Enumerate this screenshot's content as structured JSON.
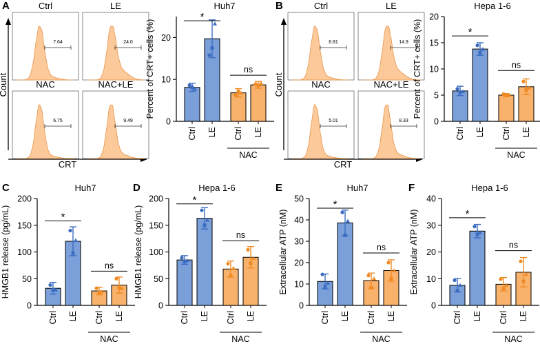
{
  "figure": {
    "panel_letters": [
      "A",
      "B",
      "C",
      "D",
      "E",
      "F"
    ],
    "colors": {
      "ctrl_fill": "#7b9fd9",
      "ctrl_dark": "#3b6cc2",
      "nac_fill": "#f9b26b",
      "nac_dark": "#f08a22",
      "flow_fill": "#fbc99a",
      "flow_line": "#e8944a",
      "axis": "#000000"
    }
  },
  "flow_panels": [
    {
      "panel": "A",
      "y_axis_label": "Count",
      "x_axis_label": "CRT",
      "histograms": [
        {
          "label": "Ctrl",
          "gate_value": "7.64"
        },
        {
          "label": "LE",
          "gate_value": "24.0"
        },
        {
          "label": "NAC",
          "gate_value": "6.75"
        },
        {
          "label": "NAC+LE",
          "gate_value": "9.49"
        }
      ]
    },
    {
      "panel": "B",
      "y_axis_label": "Count",
      "x_axis_label": "CRT",
      "histograms": [
        {
          "label": "Ctrl",
          "gate_value": "6.81"
        },
        {
          "label": "LE",
          "gate_value": "14.9"
        },
        {
          "label": "NAC",
          "gate_value": "5.01"
        },
        {
          "label": "NAC+LE",
          "gate_value": "8.33"
        }
      ]
    }
  ],
  "chart_data": [
    {
      "panel": "A",
      "type": "bar",
      "title": "Huh7",
      "xlabel": "",
      "ylabel": "Percent of CRT+ cells (%)",
      "categories": [
        "Ctrl",
        "LE",
        "Ctrl",
        "LE"
      ],
      "values": [
        8.1,
        19.7,
        6.8,
        8.7
      ],
      "errors": [
        1.0,
        4.5,
        1.0,
        0.8
      ],
      "points": [
        [
          8.6,
          8.1,
          7.7
        ],
        [
          15.8,
          17.5,
          23.3
        ],
        [
          6.3,
          7.1,
          6.8
        ],
        [
          8.9,
          8.6,
          9.1
        ]
      ],
      "ylim": [
        0,
        25
      ],
      "yticks": [
        0,
        10,
        20
      ],
      "group_label": "NAC",
      "comparisons": [
        {
          "text": "*",
          "bars": [
            0,
            1
          ],
          "value": 24.0
        },
        {
          "text": "ns",
          "bars": [
            2,
            3
          ],
          "value": 11.0
        }
      ]
    },
    {
      "panel": "B",
      "type": "bar",
      "title": "Hepa 1-6",
      "xlabel": "",
      "ylabel": "Percent of CRT+ cells (%)",
      "categories": [
        "Ctrl",
        "LE",
        "Ctrl",
        "LE"
      ],
      "values": [
        5.8,
        13.8,
        5.0,
        6.6
      ],
      "errors": [
        0.9,
        1.2,
        0.3,
        1.5
      ],
      "points": [
        [
          6.2,
          5.5,
          5.7
        ],
        [
          14.5,
          13.1,
          13.8
        ],
        [
          5.2,
          4.9,
          5.0
        ],
        [
          7.6,
          6.0,
          6.4
        ]
      ],
      "ylim": [
        0,
        20
      ],
      "yticks": [
        0,
        5,
        10,
        15,
        20
      ],
      "group_label": "NAC",
      "comparisons": [
        {
          "text": "*",
          "bars": [
            0,
            1
          ],
          "value": 16.3
        },
        {
          "text": "ns",
          "bars": [
            2,
            3
          ],
          "value": 9.7
        }
      ]
    },
    {
      "panel": "C",
      "type": "bar",
      "title": "Huh7",
      "xlabel": "",
      "ylabel": "HMGB1 release (pg/mL)",
      "categories": [
        "Ctrl",
        "LE",
        "Ctrl",
        "LE"
      ],
      "values": [
        32,
        120,
        27,
        38
      ],
      "errors": [
        11,
        27,
        7,
        15
      ],
      "points": [
        [
          38,
          29,
          29
        ],
        [
          140,
          98,
          122
        ],
        [
          32,
          24,
          26
        ],
        [
          50,
          33,
          32
        ]
      ],
      "ylim": [
        0,
        200
      ],
      "yticks": [
        0,
        50,
        100,
        150,
        200
      ],
      "group_label": "NAC",
      "comparisons": [
        {
          "text": "*",
          "bars": [
            0,
            1
          ],
          "value": 158
        },
        {
          "text": "ns",
          "bars": [
            2,
            3
          ],
          "value": 64
        }
      ]
    },
    {
      "panel": "D",
      "type": "bar",
      "title": "Hepa 1-6",
      "xlabel": "",
      "ylabel": "HMGB1 release (pg/mL)",
      "categories": [
        "Ctrl",
        "LE",
        "Ctrl",
        "LE"
      ],
      "values": [
        85,
        163,
        68,
        90
      ],
      "errors": [
        8,
        20,
        15,
        20
      ],
      "points": [
        [
          89,
          82,
          84
        ],
        [
          178,
          150,
          160
        ],
        [
          78,
          55,
          70
        ],
        [
          104,
          79,
          88
        ]
      ],
      "ylim": [
        0,
        200
      ],
      "yticks": [
        0,
        50,
        100,
        150,
        200
      ],
      "group_label": "NAC",
      "comparisons": [
        {
          "text": "*",
          "bars": [
            0,
            1
          ],
          "value": 190
        },
        {
          "text": "ns",
          "bars": [
            2,
            3
          ],
          "value": 121
        }
      ]
    },
    {
      "panel": "E",
      "type": "bar",
      "title": "Huh7",
      "xlabel": "",
      "ylabel": "Extracellular ATP (nM)",
      "categories": [
        "Ctrl",
        "LE",
        "Ctrl",
        "LE"
      ],
      "values": [
        11.2,
        38.6,
        11.6,
        16.3
      ],
      "errors": [
        3.5,
        6.0,
        3.5,
        5.0
      ],
      "points": [
        [
          14.5,
          8.6,
          10.5
        ],
        [
          43.5,
          32.8,
          39.5
        ],
        [
          14.0,
          8.2,
          12.6
        ],
        [
          20.0,
          12.5,
          16.4
        ]
      ],
      "ylim": [
        0,
        50
      ],
      "yticks": [
        0,
        10,
        20,
        30,
        40,
        50
      ],
      "group_label": "NAC",
      "comparisons": [
        {
          "text": "*",
          "bars": [
            0,
            1
          ],
          "value": 45.5
        },
        {
          "text": "ns",
          "bars": [
            2,
            3
          ],
          "value": 24.5
        }
      ]
    },
    {
      "panel": "F",
      "type": "bar",
      "title": "Hepa 1-6",
      "xlabel": "",
      "ylabel": "Extracellular ATP (nM)",
      "categories": [
        "Ctrl",
        "LE",
        "Ctrl",
        "LE"
      ],
      "values": [
        7.5,
        27.8,
        7.9,
        12.4
      ],
      "errors": [
        2.5,
        2.5,
        2.5,
        5.5
      ],
      "points": [
        [
          9.4,
          5.5,
          7.6
        ],
        [
          29.5,
          26.6,
          27.3
        ],
        [
          9.8,
          6.3,
          7.6
        ],
        [
          16.5,
          9.0,
          11.7
        ]
      ],
      "ylim": [
        0,
        40
      ],
      "yticks": [
        0,
        10,
        20,
        30,
        40
      ],
      "group_label": "NAC",
      "comparisons": [
        {
          "text": "*",
          "bars": [
            0,
            1
          ],
          "value": 32.8
        },
        {
          "text": "ns",
          "bars": [
            2,
            3
          ],
          "value": 20.5
        }
      ]
    }
  ]
}
